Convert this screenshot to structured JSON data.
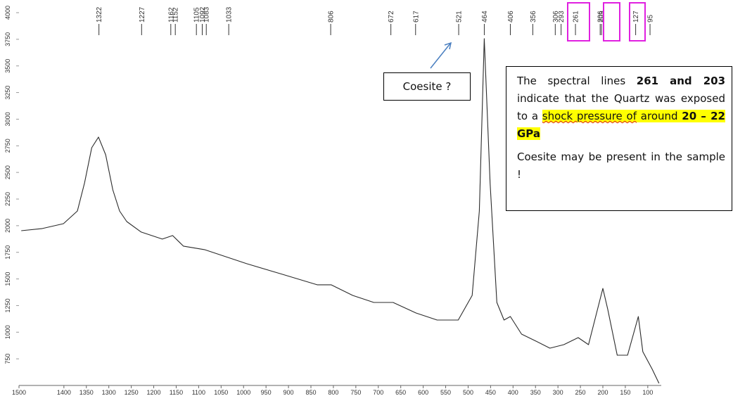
{
  "chart_data": {
    "type": "line",
    "x": [
      1495,
      1448,
      1401,
      1370,
      1354,
      1338,
      1323,
      1307,
      1291,
      1276,
      1260,
      1228,
      1181,
      1158,
      1134,
      1087,
      1040,
      993,
      914,
      836,
      805,
      757,
      710,
      667,
      616,
      569,
      522,
      491,
      475,
      464,
      451,
      436,
      420,
      406,
      381,
      349,
      318,
      287,
      255,
      232,
      216,
      200,
      189,
      168,
      145,
      121,
      111,
      90,
      75
    ],
    "series": [
      {
        "color": "#2b2b2b",
        "values": [
          1953,
          1973,
          2019,
          2138,
          2402,
          2732,
          2832,
          2666,
          2336,
          2138,
          2039,
          1940,
          1874,
          1907,
          1808,
          1775,
          1709,
          1643,
          1544,
          1445,
          1445,
          1345,
          1279,
          1279,
          1180,
          1114,
          1114,
          1345,
          2138,
          3756,
          2402,
          1279,
          1114,
          1147,
          982,
          916,
          850,
          883,
          949,
          883,
          1147,
          1411,
          1213,
          784,
          784,
          1147,
          817,
          652,
          520
        ]
      }
    ],
    "xlim": [
      1500,
      70
    ],
    "ylim": [
      500,
      4000
    ],
    "xticks": [
      1500,
      1400,
      1350,
      1300,
      1250,
      1200,
      1150,
      1100,
      1050,
      1000,
      950,
      900,
      850,
      800,
      750,
      700,
      650,
      600,
      550,
      500,
      450,
      400,
      350,
      300,
      250,
      200,
      150,
      100
    ],
    "yticks": [
      750,
      1000,
      1250,
      1500,
      1750,
      2000,
      2250,
      2500,
      2750,
      3000,
      3250,
      3500,
      3750,
      4000
    ],
    "peak_labels": [
      1322,
      1227,
      1162,
      1152,
      1105,
      1092,
      1083,
      1033,
      806,
      672,
      617,
      521,
      464,
      406,
      356,
      306,
      293,
      261,
      206,
      203,
      127,
      95
    ],
    "annotations": {
      "callout": "Coesite ?",
      "note": {
        "p1": [
          "The spectral lines ",
          "261 and 203",
          " indicate that the Quartz was exposed to a ",
          "shock pressure of",
          " around ",
          "20 – 22 GPa"
        ],
        "p2": "Coesite may be present in the sample !"
      }
    }
  }
}
